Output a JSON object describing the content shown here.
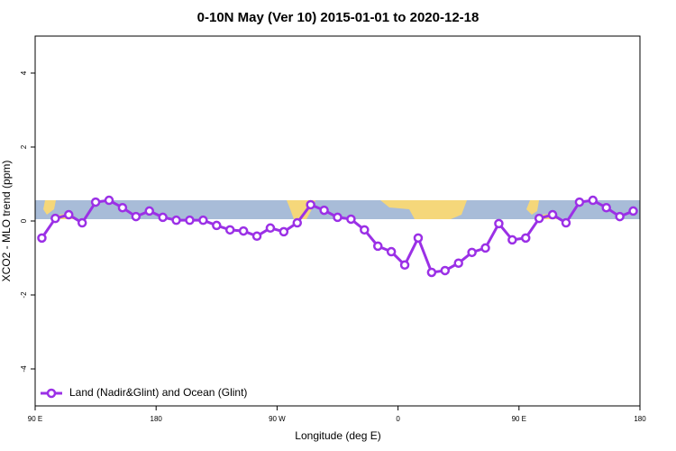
{
  "chart_data": {
    "type": "line",
    "title": "0-10N May (Ver 10)   2015-01-01 to 2020-12-18",
    "x_label": "Longitude (deg E)",
    "y_label": "XCO2 - MLO trend (ppm)",
    "x": [
      95,
      105,
      115,
      125,
      135,
      145,
      155,
      165,
      175,
      185,
      195,
      205,
      215,
      225,
      235,
      245,
      255,
      265,
      275,
      285,
      295,
      305,
      315,
      325,
      335,
      345,
      355,
      365,
      375,
      385,
      395,
      405,
      415,
      425,
      435,
      445,
      455,
      465,
      475,
      485,
      495,
      505,
      515,
      525,
      535
    ],
    "series": [
      {
        "name": "Land (Nadir&Glint) and Ocean (Glint)",
        "color": "#9b30e6",
        "values": [
          -0.46,
          0.07,
          0.17,
          -0.05,
          0.51,
          0.56,
          0.36,
          0.12,
          0.27,
          0.1,
          0.02,
          0.02,
          0.02,
          -0.12,
          -0.24,
          -0.27,
          -0.41,
          -0.19,
          -0.29,
          -0.05,
          0.44,
          0.29,
          0.1,
          0.05,
          -0.24,
          -0.68,
          -0.83,
          -1.19,
          -0.46,
          -1.39,
          -1.34,
          -1.14,
          -0.85,
          -0.73,
          -0.07,
          -0.51,
          -0.46,
          0.07,
          0.17,
          -0.05,
          0.51,
          0.56,
          0.36,
          0.12,
          0.27
        ]
      }
    ],
    "xlim": [
      90,
      540
    ],
    "xticks": [
      {
        "value": 90,
        "label": "90 E"
      },
      {
        "value": 180,
        "label": "180"
      },
      {
        "value": 270,
        "label": "90 W"
      },
      {
        "value": 360,
        "label": "0"
      },
      {
        "value": 450,
        "label": "90 E"
      },
      {
        "value": 540,
        "label": "180"
      }
    ],
    "ylim": [
      -5,
      5
    ],
    "yticks": [
      -4,
      -2,
      0,
      2,
      4
    ],
    "legend": "bottom-left"
  }
}
